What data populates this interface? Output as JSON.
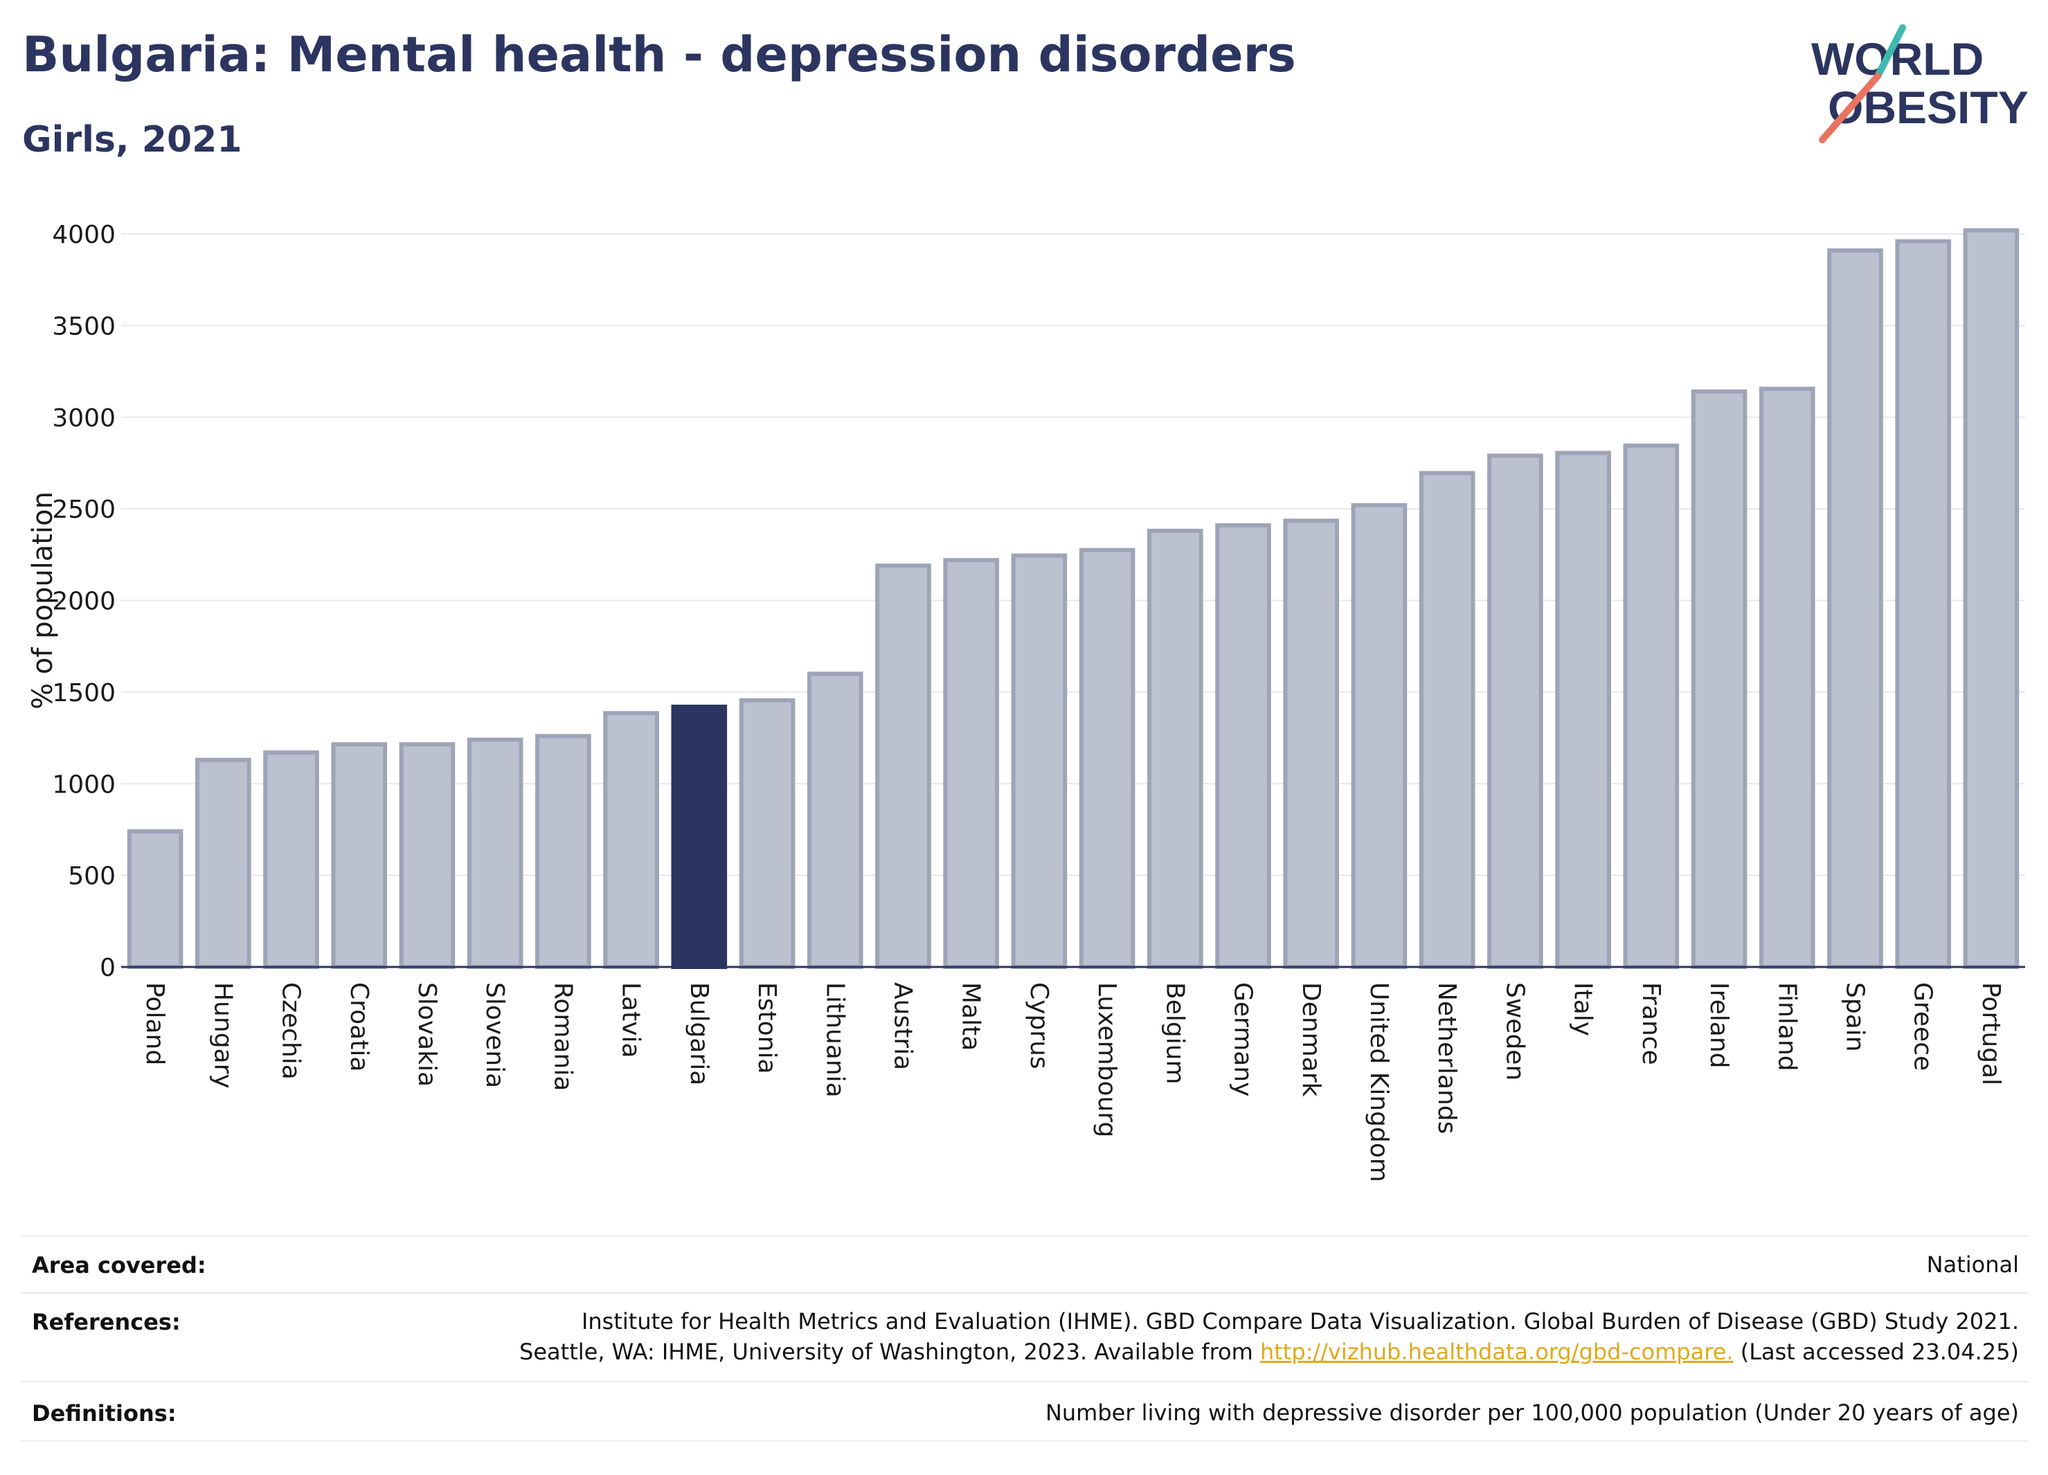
{
  "header": {
    "title": "Bulgaria: Mental health - depression disorders",
    "subtitle": "Girls, 2021"
  },
  "logo": {
    "line1": "WORLD",
    "line2": "OBESITY"
  },
  "colors": {
    "highlight": "#2b3560",
    "bar": "#bcc1cf",
    "bar_border": "#9ea4b8",
    "text": "#2b3560",
    "link": "#e0a91b",
    "logo_teal": "#3fb8b0",
    "logo_coral": "#e8735f"
  },
  "chart_data": {
    "type": "bar",
    "ylabel": "% of population",
    "xlabel": "",
    "ylim": [
      0,
      4000
    ],
    "yticks": [
      0,
      500,
      1000,
      1500,
      2000,
      2500,
      3000,
      3500,
      4000
    ],
    "grid": true,
    "highlight": "Bulgaria",
    "categories": [
      "Poland",
      "Hungary",
      "Czechia",
      "Croatia",
      "Slovakia",
      "Slovenia",
      "Romania",
      "Latvia",
      "Bulgaria",
      "Estonia",
      "Lithuania",
      "Austria",
      "Malta",
      "Cyprus",
      "Luxembourg",
      "Belgium",
      "Germany",
      "Denmark",
      "United Kingdom",
      "Netherlands",
      "Sweden",
      "Italy",
      "France",
      "Ireland",
      "Finland",
      "Spain",
      "Greece",
      "Portugal"
    ],
    "values": [
      740,
      1130,
      1170,
      1215,
      1215,
      1240,
      1260,
      1385,
      1420,
      1455,
      1600,
      2190,
      2220,
      2245,
      2275,
      2380,
      2410,
      2435,
      2520,
      2695,
      2790,
      2805,
      2845,
      3140,
      3155,
      3910,
      3960,
      4020
    ]
  },
  "footer": {
    "area_label": "Area covered:",
    "area_value": "National",
    "references_label": "References:",
    "references_line1": "Institute for Health Metrics and Evaluation (IHME). GBD Compare Data Visualization. Global Burden of Disease (GBD) Study 2021.",
    "references_line2_pre": "Seattle, WA: IHME, University of Washington, 2023. Available from",
    "references_link": "http://vizhub.healthdata.org/gbd-compare.",
    "references_line2_post": "(Last accessed 23.04.25)",
    "definitions_label": "Definitions:",
    "definitions_value": "Number living with depressive disorder per 100,000 population (Under 20 years of age)"
  }
}
